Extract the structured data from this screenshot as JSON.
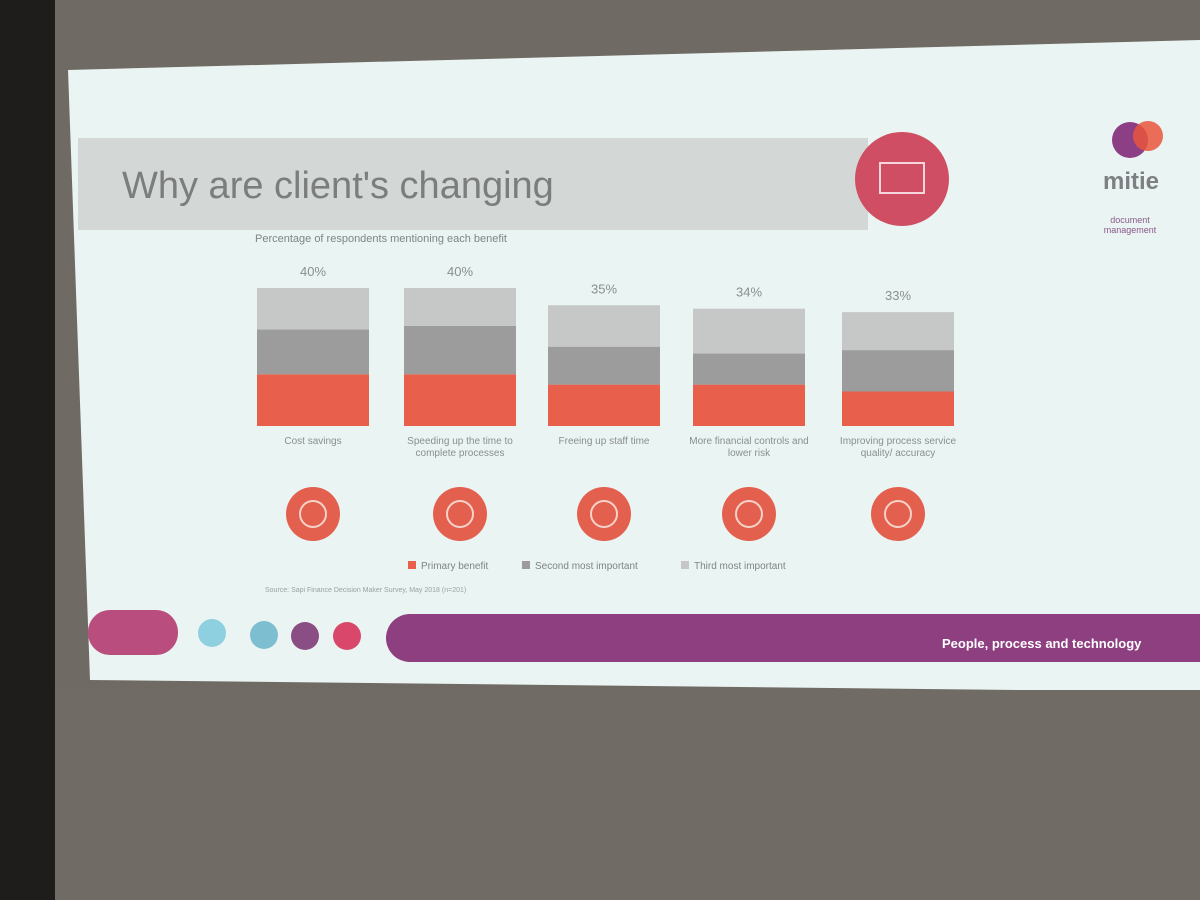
{
  "chart_data": {
    "type": "stacked_bar",
    "title": "Why are client's changing",
    "subtitle": "Percentage of respondents mentioning each benefit",
    "categories": [
      "Cost savings",
      "Speeding up the time to complete processes",
      "Freeing up staff time",
      "More financial controls and lower risk",
      "Improving process service quality/ accuracy"
    ],
    "series": [
      {
        "name": "Primary benefit",
        "color": "#e8604c",
        "values": [
          15,
          15,
          12,
          12,
          10
        ]
      },
      {
        "name": "Second most important",
        "color": "#9c9c9c",
        "values": [
          13,
          14,
          11,
          9,
          12
        ]
      },
      {
        "name": "Third most important",
        "color": "#c6c8c8",
        "values": [
          12,
          11,
          12,
          13,
          11
        ]
      }
    ],
    "totals": [
      40,
      40,
      35,
      34,
      33
    ],
    "total_labels": [
      "40%",
      "40%",
      "35%",
      "34%",
      "33%"
    ],
    "ylim": [
      0,
      40
    ],
    "legend": "bottom",
    "source": "Source: Sapi Finance Decision Maker Survey, May 2018 (n=201)",
    "logo": "mitie",
    "logo_subtitle": "document management",
    "footer": "People, process and technology"
  }
}
